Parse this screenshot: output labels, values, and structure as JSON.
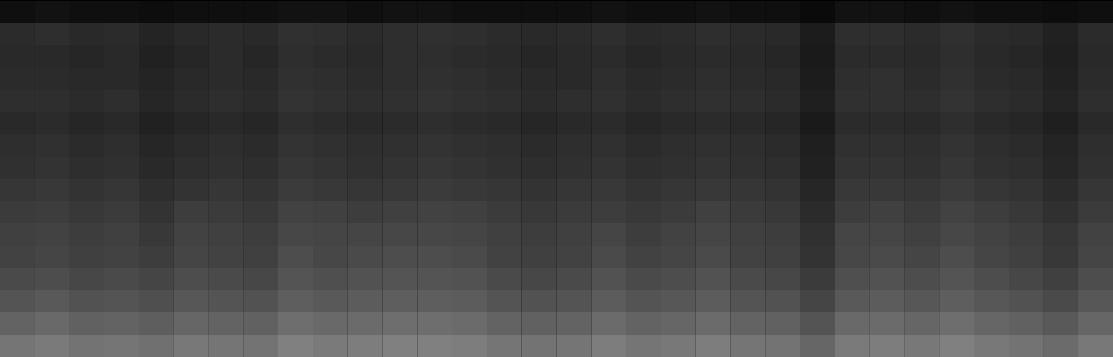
{
  "chart_data": {
    "type": "heatmap",
    "tick_labels": false,
    "zlim": [
      0,
      1
    ],
    "cells": [
      [
        0.06,
        0.07,
        0.06,
        0.06,
        0.05,
        0.06,
        0.06,
        0.06,
        0.07,
        0.07,
        0.06,
        0.07,
        0.07,
        0.06,
        0.06,
        0.06,
        0.06,
        0.07,
        0.06,
        0.06,
        0.07,
        0.06,
        0.06,
        0.04,
        0.07,
        0.07,
        0.06,
        0.07,
        0.06,
        0.06,
        0.05,
        0.06
      ],
      [
        0.17,
        0.18,
        0.16,
        0.17,
        0.14,
        0.16,
        0.17,
        0.16,
        0.19,
        0.18,
        0.17,
        0.18,
        0.19,
        0.18,
        0.17,
        0.16,
        0.17,
        0.18,
        0.16,
        0.17,
        0.18,
        0.17,
        0.16,
        0.11,
        0.18,
        0.18,
        0.17,
        0.19,
        0.17,
        0.16,
        0.13,
        0.17
      ],
      [
        0.16,
        0.16,
        0.15,
        0.16,
        0.13,
        0.15,
        0.17,
        0.15,
        0.18,
        0.17,
        0.16,
        0.18,
        0.18,
        0.17,
        0.16,
        0.15,
        0.16,
        0.17,
        0.15,
        0.16,
        0.17,
        0.16,
        0.15,
        0.1,
        0.17,
        0.17,
        0.16,
        0.18,
        0.16,
        0.15,
        0.12,
        0.16
      ],
      [
        0.17,
        0.17,
        0.16,
        0.16,
        0.14,
        0.16,
        0.17,
        0.16,
        0.19,
        0.18,
        0.17,
        0.18,
        0.19,
        0.18,
        0.17,
        0.16,
        0.16,
        0.18,
        0.16,
        0.17,
        0.18,
        0.17,
        0.16,
        0.11,
        0.18,
        0.19,
        0.17,
        0.19,
        0.17,
        0.16,
        0.13,
        0.17
      ],
      [
        0.18,
        0.18,
        0.17,
        0.18,
        0.15,
        0.17,
        0.18,
        0.17,
        0.2,
        0.19,
        0.18,
        0.19,
        0.2,
        0.19,
        0.18,
        0.17,
        0.18,
        0.19,
        0.17,
        0.18,
        0.19,
        0.18,
        0.17,
        0.12,
        0.19,
        0.19,
        0.18,
        0.2,
        0.18,
        0.17,
        0.14,
        0.18
      ],
      [
        0.16,
        0.17,
        0.15,
        0.16,
        0.13,
        0.15,
        0.16,
        0.15,
        0.18,
        0.17,
        0.16,
        0.17,
        0.18,
        0.17,
        0.16,
        0.15,
        0.16,
        0.17,
        0.15,
        0.16,
        0.17,
        0.16,
        0.15,
        0.1,
        0.17,
        0.17,
        0.16,
        0.18,
        0.16,
        0.15,
        0.12,
        0.16
      ],
      [
        0.18,
        0.19,
        0.17,
        0.18,
        0.15,
        0.17,
        0.18,
        0.17,
        0.2,
        0.19,
        0.18,
        0.19,
        0.2,
        0.19,
        0.18,
        0.17,
        0.18,
        0.19,
        0.17,
        0.18,
        0.19,
        0.18,
        0.17,
        0.12,
        0.19,
        0.19,
        0.18,
        0.2,
        0.18,
        0.17,
        0.14,
        0.18
      ],
      [
        0.19,
        0.2,
        0.18,
        0.19,
        0.16,
        0.18,
        0.19,
        0.18,
        0.21,
        0.2,
        0.19,
        0.2,
        0.21,
        0.2,
        0.19,
        0.18,
        0.19,
        0.2,
        0.18,
        0.19,
        0.2,
        0.19,
        0.18,
        0.13,
        0.2,
        0.2,
        0.19,
        0.21,
        0.19,
        0.18,
        0.15,
        0.19
      ],
      [
        0.21,
        0.22,
        0.2,
        0.21,
        0.18,
        0.2,
        0.21,
        0.2,
        0.23,
        0.22,
        0.21,
        0.22,
        0.23,
        0.22,
        0.21,
        0.2,
        0.21,
        0.22,
        0.2,
        0.21,
        0.22,
        0.21,
        0.2,
        0.15,
        0.22,
        0.22,
        0.21,
        0.23,
        0.21,
        0.2,
        0.17,
        0.21
      ],
      [
        0.23,
        0.24,
        0.22,
        0.23,
        0.2,
        0.24,
        0.23,
        0.22,
        0.26,
        0.25,
        0.24,
        0.25,
        0.26,
        0.25,
        0.23,
        0.22,
        0.23,
        0.24,
        0.22,
        0.23,
        0.25,
        0.23,
        0.22,
        0.17,
        0.24,
        0.25,
        0.23,
        0.26,
        0.24,
        0.22,
        0.19,
        0.23
      ],
      [
        0.25,
        0.26,
        0.24,
        0.25,
        0.22,
        0.26,
        0.25,
        0.24,
        0.28,
        0.27,
        0.27,
        0.28,
        0.28,
        0.27,
        0.25,
        0.24,
        0.25,
        0.27,
        0.24,
        0.26,
        0.27,
        0.25,
        0.24,
        0.19,
        0.27,
        0.27,
        0.25,
        0.28,
        0.26,
        0.24,
        0.21,
        0.26
      ],
      [
        0.26,
        0.27,
        0.25,
        0.26,
        0.24,
        0.27,
        0.26,
        0.25,
        0.3,
        0.28,
        0.29,
        0.3,
        0.3,
        0.29,
        0.26,
        0.25,
        0.26,
        0.29,
        0.26,
        0.27,
        0.29,
        0.26,
        0.25,
        0.2,
        0.28,
        0.29,
        0.27,
        0.3,
        0.27,
        0.25,
        0.22,
        0.27
      ],
      [
        0.29,
        0.3,
        0.28,
        0.29,
        0.27,
        0.3,
        0.29,
        0.28,
        0.33,
        0.31,
        0.32,
        0.33,
        0.33,
        0.32,
        0.29,
        0.28,
        0.29,
        0.32,
        0.29,
        0.3,
        0.32,
        0.29,
        0.28,
        0.23,
        0.31,
        0.32,
        0.3,
        0.33,
        0.3,
        0.28,
        0.25,
        0.3
      ],
      [
        0.33,
        0.35,
        0.32,
        0.33,
        0.31,
        0.34,
        0.33,
        0.32,
        0.37,
        0.35,
        0.36,
        0.37,
        0.37,
        0.36,
        0.33,
        0.32,
        0.33,
        0.36,
        0.33,
        0.34,
        0.36,
        0.33,
        0.32,
        0.27,
        0.35,
        0.36,
        0.34,
        0.37,
        0.34,
        0.32,
        0.29,
        0.34
      ],
      [
        0.39,
        0.41,
        0.38,
        0.39,
        0.37,
        0.4,
        0.39,
        0.38,
        0.43,
        0.41,
        0.42,
        0.43,
        0.43,
        0.42,
        0.39,
        0.38,
        0.39,
        0.42,
        0.39,
        0.4,
        0.42,
        0.39,
        0.38,
        0.33,
        0.41,
        0.42,
        0.4,
        0.43,
        0.4,
        0.38,
        0.35,
        0.4
      ],
      [
        0.46,
        0.48,
        0.45,
        0.46,
        0.44,
        0.47,
        0.46,
        0.45,
        0.5,
        0.48,
        0.49,
        0.5,
        0.5,
        0.49,
        0.46,
        0.45,
        0.46,
        0.49,
        0.46,
        0.47,
        0.49,
        0.46,
        0.45,
        0.4,
        0.48,
        0.49,
        0.47,
        0.5,
        0.47,
        0.45,
        0.42,
        0.47
      ]
    ]
  }
}
